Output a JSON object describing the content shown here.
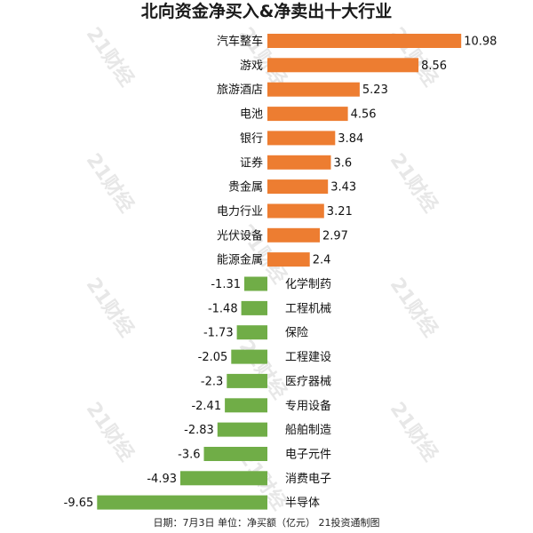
{
  "chart_data": {
    "type": "bar",
    "orientation": "horizontal",
    "title": "北向资金净买入&净卖出十大行业",
    "footnote": "日期：7月3日 单位：净买额（亿元） 21投资通制图",
    "watermark": "21财经",
    "categories": [
      "汽车整车",
      "游戏",
      "旅游酒店",
      "电池",
      "银行",
      "证券",
      "贵金属",
      "电力行业",
      "光伏设备",
      "能源金属",
      "化学制药",
      "工程机械",
      "保险",
      "工程建设",
      "医疗器械",
      "专用设备",
      "船舶制造",
      "电子元件",
      "消费电子",
      "半导体"
    ],
    "values": [
      10.98,
      8.56,
      5.23,
      4.56,
      3.84,
      3.6,
      3.43,
      3.21,
      2.97,
      2.4,
      -1.31,
      -1.48,
      -1.73,
      -2.05,
      -2.3,
      -2.41,
      -2.83,
      -3.6,
      -4.93,
      -9.65
    ],
    "value_labels": [
      "10.98",
      "8.56",
      "5.23",
      "4.56",
      "3.84",
      "3.6",
      "3.43",
      "3.21",
      "2.97",
      "2.4",
      "-1.31",
      "-1.48",
      "-1.73",
      "-2.05",
      "-2.3",
      "-2.41",
      "-2.83",
      "-3.6",
      "-4.93",
      "-9.65"
    ],
    "colors": {
      "positive": "#ED7D31",
      "negative": "#70AD47"
    },
    "grid": false,
    "legend": false
  }
}
